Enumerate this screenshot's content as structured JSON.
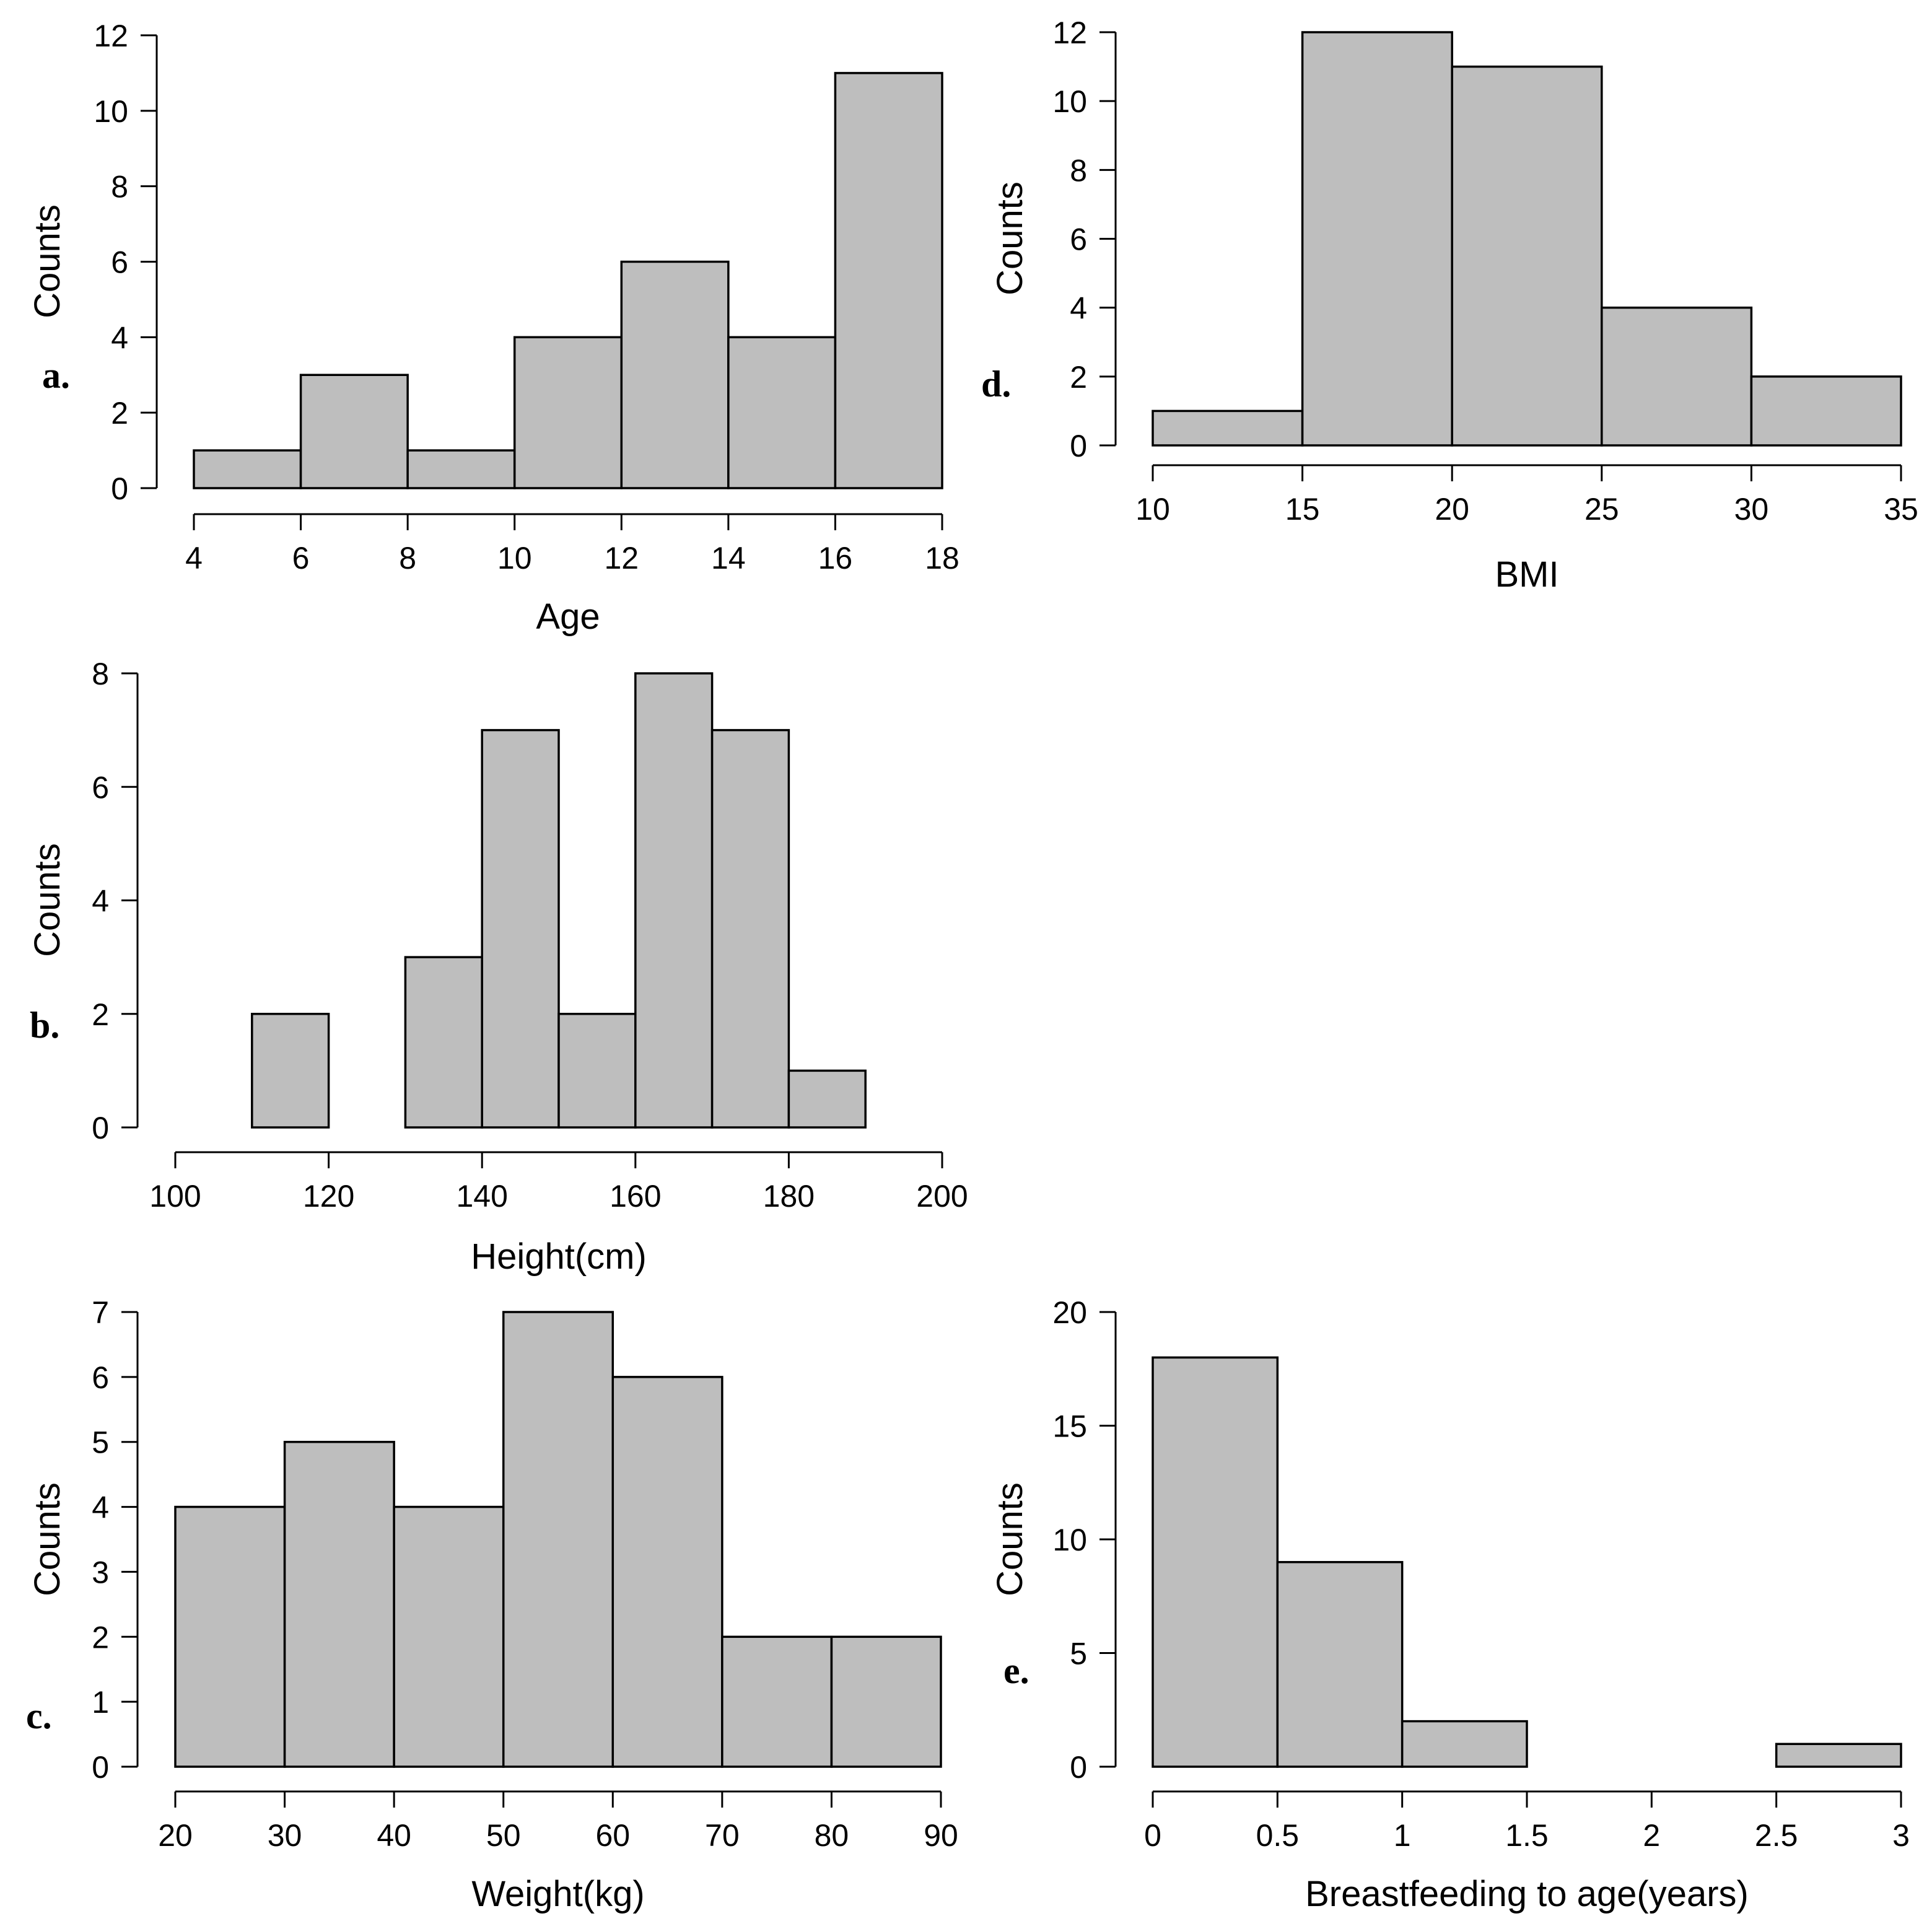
{
  "colors": {
    "bar_fill": "#bebebe",
    "stroke": "#000000",
    "background": "#ffffff"
  },
  "chart_data": [
    {
      "id": "a",
      "type": "bar",
      "panel_label": "a.",
      "xlabel": "Age",
      "ylabel": "Counts",
      "bins": [
        [
          4,
          6
        ],
        [
          6,
          8
        ],
        [
          8,
          10
        ],
        [
          10,
          12
        ],
        [
          12,
          14
        ],
        [
          14,
          16
        ],
        [
          16,
          18
        ]
      ],
      "values": [
        1,
        3,
        1,
        4,
        6,
        4,
        11
      ],
      "xlim": [
        4,
        18
      ],
      "ylim": [
        0,
        12
      ],
      "xticks": [
        4,
        6,
        8,
        10,
        12,
        14,
        16,
        18
      ],
      "yticks": [
        0,
        2,
        4,
        6,
        8,
        10,
        12
      ]
    },
    {
      "id": "b",
      "type": "bar",
      "panel_label": "b.",
      "xlabel": "Height(cm)",
      "ylabel": "Counts",
      "bins": [
        [
          110,
          120
        ],
        [
          120,
          130
        ],
        [
          130,
          140
        ],
        [
          140,
          150
        ],
        [
          150,
          160
        ],
        [
          160,
          170
        ],
        [
          170,
          180
        ],
        [
          180,
          190
        ]
      ],
      "values": [
        2,
        0,
        3,
        7,
        2,
        8,
        7,
        1
      ],
      "xlim": [
        100,
        200
      ],
      "ylim": [
        0,
        8
      ],
      "xticks": [
        100,
        120,
        140,
        160,
        180,
        200
      ],
      "yticks": [
        0,
        2,
        4,
        6,
        8
      ]
    },
    {
      "id": "c",
      "type": "bar",
      "panel_label": "c.",
      "xlabel": "Weight(kg)",
      "ylabel": "Counts",
      "bins": [
        [
          20,
          30
        ],
        [
          30,
          40
        ],
        [
          40,
          50
        ],
        [
          50,
          60
        ],
        [
          60,
          70
        ],
        [
          70,
          80
        ],
        [
          80,
          90
        ]
      ],
      "values": [
        4,
        5,
        4,
        7,
        6,
        2,
        2
      ],
      "xlim": [
        20,
        90
      ],
      "ylim": [
        0,
        7
      ],
      "xticks": [
        20,
        30,
        40,
        50,
        60,
        70,
        80,
        90
      ],
      "yticks": [
        0,
        1,
        2,
        3,
        4,
        5,
        6,
        7
      ]
    },
    {
      "id": "d",
      "type": "bar",
      "panel_label": "d.",
      "xlabel": "BMI",
      "ylabel": "Counts",
      "bins": [
        [
          10,
          15
        ],
        [
          15,
          20
        ],
        [
          20,
          25
        ],
        [
          25,
          30
        ],
        [
          30,
          35
        ]
      ],
      "values": [
        1,
        12,
        11,
        4,
        2
      ],
      "xlim": [
        10,
        35
      ],
      "ylim": [
        0,
        12
      ],
      "xticks": [
        10,
        15,
        20,
        25,
        30,
        35
      ],
      "yticks": [
        0,
        2,
        4,
        6,
        8,
        10,
        12
      ]
    },
    {
      "id": "e",
      "type": "bar",
      "panel_label": "e.",
      "xlabel": "Breastfeeding to age(years)",
      "ylabel": "Counts",
      "bins": [
        [
          0,
          0.5
        ],
        [
          0.5,
          1
        ],
        [
          1,
          1.5
        ],
        [
          1.5,
          2
        ],
        [
          2,
          2.5
        ],
        [
          2.5,
          3
        ]
      ],
      "values": [
        18,
        9,
        2,
        0,
        0,
        1
      ],
      "xlim": [
        0,
        3
      ],
      "ylim": [
        0,
        20
      ],
      "xticks": [
        0,
        0.5,
        1,
        1.5,
        2,
        2.5,
        3
      ],
      "yticks": [
        0,
        5,
        10,
        15,
        20
      ]
    }
  ]
}
